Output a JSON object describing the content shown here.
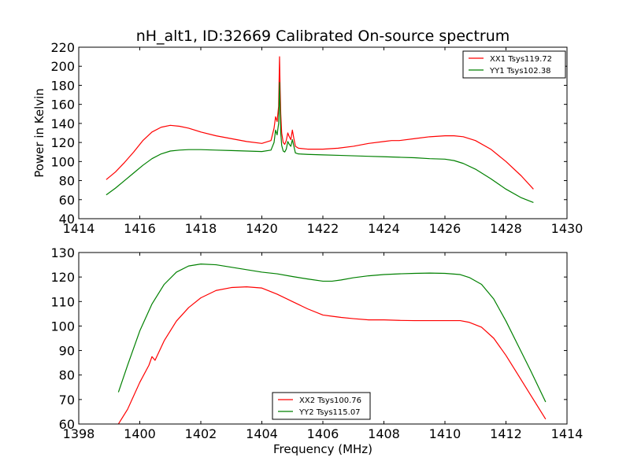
{
  "figure": {
    "title": "nH_alt1, ID:32669 Calibrated On-source spectrum"
  },
  "chart_data": [
    {
      "type": "line",
      "title": "nH_alt1, ID:32669 Calibrated On-source spectrum",
      "xlabel": "",
      "ylabel": "Power in Kelvin",
      "xlim": [
        1414,
        1430
      ],
      "ylim": [
        40,
        220
      ],
      "xticks": [
        1414,
        1416,
        1418,
        1420,
        1422,
        1424,
        1426,
        1428,
        1430
      ],
      "yticks": [
        40,
        60,
        80,
        100,
        120,
        140,
        160,
        180,
        200,
        220
      ],
      "grid": false,
      "legend_position": "upper right",
      "series": [
        {
          "name": "XX1 Tsys119.72",
          "color": "#ff0000",
          "x": [
            1414.9,
            1415.2,
            1415.5,
            1415.8,
            1416.1,
            1416.4,
            1416.7,
            1417.0,
            1417.3,
            1417.6,
            1418.0,
            1418.5,
            1419.0,
            1419.5,
            1420.0,
            1420.3,
            1420.4,
            1420.45,
            1420.5,
            1420.55,
            1420.58,
            1420.6,
            1420.62,
            1420.65,
            1420.7,
            1420.75,
            1420.8,
            1420.85,
            1420.9,
            1420.95,
            1421.0,
            1421.05,
            1421.1,
            1421.2,
            1421.5,
            1422.0,
            1422.5,
            1423.0,
            1423.5,
            1424.0,
            1424.25,
            1424.5,
            1425.0,
            1425.5,
            1426.0,
            1426.3,
            1426.6,
            1427.0,
            1427.5,
            1428.0,
            1428.5,
            1428.9
          ],
          "y": [
            81,
            89,
            99,
            110,
            122,
            131,
            136,
            138,
            137,
            135,
            131,
            127,
            124,
            121,
            119,
            122,
            135,
            147,
            142,
            158,
            210,
            175,
            150,
            130,
            120,
            118,
            122,
            130,
            126,
            123,
            133,
            124,
            116,
            114,
            113,
            113,
            114,
            116,
            119,
            121,
            122,
            122,
            124,
            126,
            127,
            127,
            126,
            122,
            113,
            100,
            85,
            71
          ]
        },
        {
          "name": "YY1 Tsys102.38",
          "color": "#008000",
          "x": [
            1414.9,
            1415.2,
            1415.5,
            1415.8,
            1416.1,
            1416.4,
            1416.7,
            1417.0,
            1417.3,
            1417.6,
            1418.0,
            1418.5,
            1419.0,
            1419.5,
            1420.0,
            1420.3,
            1420.4,
            1420.45,
            1420.5,
            1420.55,
            1420.58,
            1420.6,
            1420.62,
            1420.65,
            1420.7,
            1420.75,
            1420.8,
            1420.85,
            1420.9,
            1420.95,
            1421.0,
            1421.05,
            1421.1,
            1421.2,
            1421.5,
            1422.0,
            1422.5,
            1423.0,
            1423.5,
            1424.0,
            1424.5,
            1425.0,
            1425.5,
            1426.0,
            1426.3,
            1426.6,
            1427.0,
            1427.5,
            1428.0,
            1428.5,
            1428.9
          ],
          "y": [
            65,
            72,
            80,
            88,
            96,
            103,
            108,
            111,
            112,
            112.5,
            112.5,
            112,
            111.5,
            111,
            110.5,
            112,
            120,
            133,
            128,
            140,
            183,
            155,
            130,
            117,
            111,
            110,
            113,
            121,
            118,
            116,
            123,
            116,
            109,
            108,
            107.5,
            107,
            106.5,
            106,
            105.5,
            105,
            104.5,
            104,
            103,
            102.5,
            101,
            98,
            92,
            82,
            71,
            62,
            57
          ]
        }
      ]
    },
    {
      "type": "line",
      "title": "",
      "xlabel": "Frequency (MHz)",
      "ylabel": "",
      "xlim": [
        1398,
        1414
      ],
      "ylim": [
        60,
        130
      ],
      "xticks": [
        1398,
        1400,
        1402,
        1404,
        1406,
        1408,
        1410,
        1412,
        1414
      ],
      "yticks": [
        60,
        70,
        80,
        90,
        100,
        110,
        120,
        130
      ],
      "grid": false,
      "legend_position": "lower center",
      "series": [
        {
          "name": "XX2 Tsys100.76",
          "color": "#ff0000",
          "x": [
            1399.3,
            1399.6,
            1400.0,
            1400.3,
            1400.4,
            1400.5,
            1400.8,
            1401.2,
            1401.6,
            1402.0,
            1402.5,
            1403.0,
            1403.5,
            1404.0,
            1404.5,
            1405.0,
            1405.5,
            1406.0,
            1406.3,
            1406.6,
            1407.0,
            1407.5,
            1408.0,
            1408.5,
            1409.0,
            1409.5,
            1410.0,
            1410.5,
            1410.8,
            1411.2,
            1411.6,
            1412.0,
            1412.4,
            1412.8,
            1413.3
          ],
          "y": [
            60,
            66,
            77,
            84,
            87.5,
            86,
            94,
            102,
            107.5,
            111.5,
            114.5,
            115.7,
            116,
            115.5,
            113,
            110,
            107,
            104.5,
            104,
            103.5,
            103,
            102.5,
            102.5,
            102.3,
            102.2,
            102.2,
            102.2,
            102.2,
            101.5,
            99.5,
            95,
            88,
            80,
            72,
            62
          ]
        },
        {
          "name": "YY2 Tsys115.07",
          "color": "#008000",
          "x": [
            1399.3,
            1399.6,
            1400.0,
            1400.4,
            1400.8,
            1401.2,
            1401.6,
            1402.0,
            1402.5,
            1403.0,
            1403.5,
            1404.0,
            1404.5,
            1405.0,
            1405.5,
            1406.0,
            1406.3,
            1406.6,
            1407.0,
            1407.5,
            1408.0,
            1408.5,
            1409.0,
            1409.5,
            1410.0,
            1410.5,
            1410.8,
            1411.2,
            1411.6,
            1412.0,
            1412.4,
            1412.8,
            1413.3
          ],
          "y": [
            73,
            84,
            98,
            109,
            117,
            122,
            124.5,
            125.3,
            125,
            124,
            123,
            122,
            121.3,
            120.2,
            119.2,
            118.3,
            118.3,
            118.8,
            119.7,
            120.5,
            121,
            121.3,
            121.5,
            121.6,
            121.5,
            121,
            119.8,
            117,
            111,
            102,
            92,
            82,
            69
          ]
        }
      ]
    }
  ]
}
